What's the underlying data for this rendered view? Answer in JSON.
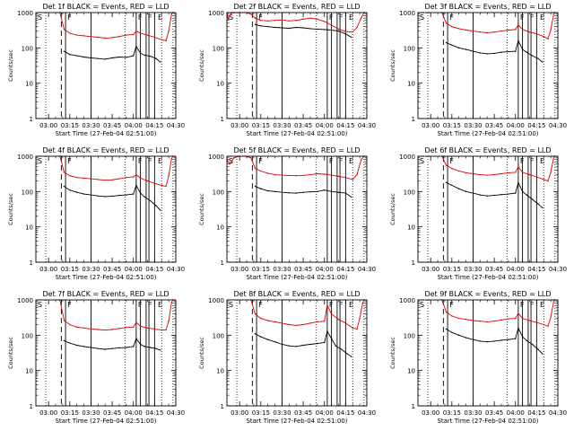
{
  "window": {
    "x_label": "Start Time (27-Feb-04 02:51:00)",
    "y_label": "Counts/sec",
    "x_ticks": [
      "03:00",
      "03:15",
      "03:30",
      "03:45",
      "04:00",
      "04:15",
      "04:30"
    ],
    "y_ticks": [
      "1",
      "10",
      "100",
      "1000"
    ]
  },
  "colors": {
    "events": "#000000",
    "lld": "#dd0000",
    "frame": "#000000"
  },
  "chart_data": [
    {
      "type": "line",
      "title": "Det 1f BLACK = Events, RED = LLD",
      "x_range_minutes": [
        171,
        270
      ],
      "y_range": [
        1,
        1000
      ],
      "y_scale": "log",
      "flags": [
        "S",
        "F",
        "F",
        "F",
        "E"
      ],
      "series": [
        {
          "name": "Events",
          "color": "#000000",
          "x": [
            191,
            195,
            200,
            205,
            210,
            215,
            220,
            225,
            230,
            235,
            240,
            242,
            245,
            248,
            252,
            256,
            259
          ],
          "y": [
            80,
            65,
            60,
            55,
            52,
            50,
            48,
            52,
            55,
            54,
            60,
            110,
            70,
            62,
            58,
            50,
            40
          ]
        },
        {
          "name": "LLD",
          "color": "#dd0000",
          "x": [
            188,
            191,
            195,
            200,
            205,
            210,
            215,
            220,
            225,
            230,
            235,
            240,
            242,
            245,
            250,
            255,
            260,
            263,
            265,
            267,
            268
          ],
          "y": [
            1000,
            330,
            260,
            230,
            220,
            210,
            200,
            190,
            195,
            210,
            230,
            240,
            300,
            260,
            230,
            200,
            170,
            160,
            300,
            900,
            1000
          ]
        }
      ]
    },
    {
      "type": "line",
      "title": "Det 2f BLACK = Events, RED = LLD",
      "x_range_minutes": [
        171,
        270
      ],
      "y_range": [
        1,
        1000
      ],
      "y_scale": "log",
      "flags": [
        "S",
        "F",
        "F",
        "F",
        "E"
      ],
      "series": [
        {
          "name": "Events",
          "color": "#000000",
          "x": [
            191,
            195,
            200,
            205,
            210,
            215,
            220,
            225,
            230,
            235,
            240,
            245,
            250,
            255,
            259
          ],
          "y": [
            460,
            420,
            400,
            380,
            370,
            360,
            380,
            370,
            350,
            340,
            330,
            320,
            300,
            250,
            200
          ]
        },
        {
          "name": "LLD",
          "color": "#dd0000",
          "x": [
            171,
            172,
            174,
            176,
            180,
            185,
            188,
            191,
            195,
            200,
            205,
            210,
            215,
            220,
            225,
            230,
            235,
            240,
            245,
            250,
            255,
            260,
            263,
            266,
            268
          ],
          "y": [
            1000,
            650,
            950,
            1000,
            1000,
            1000,
            900,
            700,
            600,
            580,
            600,
            620,
            580,
            600,
            650,
            700,
            650,
            560,
            440,
            340,
            290,
            280,
            380,
            700,
            1000
          ]
        }
      ]
    },
    {
      "type": "line",
      "title": "Det 3f BLACK = Events, RED = LLD",
      "x_range_minutes": [
        171,
        270
      ],
      "y_range": [
        1,
        1000
      ],
      "y_scale": "log",
      "flags": [
        "S",
        "F",
        "F",
        "F",
        "E"
      ],
      "series": [
        {
          "name": "Events",
          "color": "#000000",
          "x": [
            191,
            195,
            200,
            205,
            210,
            215,
            220,
            225,
            230,
            235,
            240,
            242,
            245,
            248,
            252,
            256,
            259
          ],
          "y": [
            140,
            120,
            100,
            90,
            80,
            72,
            68,
            70,
            75,
            78,
            80,
            160,
            90,
            75,
            60,
            50,
            40
          ]
        },
        {
          "name": "LLD",
          "color": "#dd0000",
          "x": [
            188,
            191,
            195,
            200,
            205,
            210,
            215,
            220,
            225,
            230,
            235,
            240,
            242,
            245,
            250,
            255,
            260,
            263,
            265,
            267,
            268
          ],
          "y": [
            1000,
            500,
            400,
            350,
            320,
            300,
            280,
            270,
            280,
            300,
            320,
            330,
            450,
            330,
            280,
            250,
            210,
            180,
            320,
            900,
            1000
          ]
        }
      ]
    },
    {
      "type": "line",
      "title": "Det 4f BLACK = Events, RED = LLD",
      "x_range_minutes": [
        171,
        270
      ],
      "y_range": [
        1,
        1000
      ],
      "y_scale": "log",
      "flags": [
        "S",
        "F",
        "F",
        "F",
        "E"
      ],
      "series": [
        {
          "name": "Events",
          "color": "#000000",
          "x": [
            191,
            195,
            200,
            205,
            210,
            215,
            220,
            225,
            230,
            235,
            240,
            242,
            245,
            248,
            252,
            256,
            259
          ],
          "y": [
            140,
            110,
            95,
            85,
            80,
            75,
            72,
            74,
            78,
            80,
            85,
            150,
            90,
            70,
            55,
            40,
            30
          ]
        },
        {
          "name": "LLD",
          "color": "#dd0000",
          "x": [
            188,
            191,
            195,
            200,
            205,
            210,
            215,
            220,
            225,
            230,
            235,
            240,
            242,
            245,
            250,
            255,
            260,
            263,
            265,
            267,
            268
          ],
          "y": [
            1000,
            350,
            280,
            250,
            240,
            230,
            220,
            210,
            215,
            230,
            250,
            260,
            300,
            240,
            200,
            170,
            150,
            140,
            280,
            850,
            1000
          ]
        }
      ]
    },
    {
      "type": "line",
      "title": "Det 5f BLACK = Events, RED = LLD",
      "x_range_minutes": [
        171,
        270
      ],
      "y_range": [
        1,
        1000
      ],
      "y_scale": "log",
      "flags": [
        "S",
        "F",
        "F",
        "F",
        "E"
      ],
      "series": [
        {
          "name": "Events",
          "color": "#000000",
          "x": [
            191,
            195,
            200,
            205,
            210,
            215,
            220,
            225,
            230,
            235,
            240,
            245,
            250,
            255,
            259
          ],
          "y": [
            140,
            120,
            105,
            100,
            95,
            92,
            90,
            95,
            98,
            100,
            110,
            100,
            95,
            90,
            70
          ]
        },
        {
          "name": "LLD",
          "color": "#dd0000",
          "x": [
            171,
            173,
            176,
            180,
            184,
            188,
            191,
            195,
            200,
            205,
            210,
            215,
            220,
            225,
            230,
            235,
            240,
            245,
            250,
            255,
            260,
            263,
            266,
            268
          ],
          "y": [
            800,
            600,
            900,
            1000,
            1000,
            900,
            450,
            380,
            330,
            300,
            290,
            285,
            280,
            285,
            300,
            320,
            310,
            290,
            270,
            250,
            220,
            300,
            800,
            1000
          ]
        }
      ]
    },
    {
      "type": "line",
      "title": "Det 6f BLACK = Events, RED = LLD",
      "x_range_minutes": [
        171,
        270
      ],
      "y_range": [
        1,
        1000
      ],
      "y_scale": "log",
      "flags": [
        "S",
        "F",
        "F",
        "F",
        "E"
      ],
      "series": [
        {
          "name": "Events",
          "color": "#000000",
          "x": [
            191,
            195,
            200,
            205,
            210,
            215,
            220,
            225,
            230,
            235,
            240,
            242,
            245,
            248,
            252,
            256,
            259
          ],
          "y": [
            180,
            150,
            120,
            100,
            90,
            80,
            75,
            78,
            82,
            85,
            90,
            180,
            100,
            80,
            60,
            45,
            35
          ]
        },
        {
          "name": "LLD",
          "color": "#dd0000",
          "x": [
            188,
            191,
            195,
            200,
            205,
            210,
            215,
            220,
            225,
            230,
            235,
            240,
            242,
            245,
            250,
            255,
            260,
            263,
            265,
            267,
            268
          ],
          "y": [
            1000,
            550,
            450,
            380,
            340,
            320,
            300,
            290,
            300,
            320,
            340,
            350,
            500,
            350,
            300,
            260,
            220,
            200,
            350,
            900,
            1000
          ]
        }
      ]
    },
    {
      "type": "line",
      "title": "Det 7f BLACK = Events, RED = LLD",
      "x_range_minutes": [
        171,
        270
      ],
      "y_range": [
        1,
        1000
      ],
      "y_scale": "log",
      "flags": [
        "S",
        "F",
        "F",
        "F",
        "E"
      ],
      "series": [
        {
          "name": "Events",
          "color": "#000000",
          "x": [
            191,
            195,
            200,
            205,
            210,
            215,
            220,
            225,
            230,
            235,
            240,
            242,
            245,
            248,
            252,
            256,
            259
          ],
          "y": [
            70,
            60,
            52,
            48,
            45,
            42,
            40,
            42,
            44,
            45,
            48,
            80,
            55,
            48,
            45,
            42,
            38
          ]
        },
        {
          "name": "LLD",
          "color": "#dd0000",
          "x": [
            188,
            191,
            195,
            200,
            205,
            210,
            215,
            220,
            225,
            230,
            235,
            240,
            242,
            245,
            250,
            255,
            260,
            263,
            265,
            267,
            268
          ],
          "y": [
            1000,
            260,
            200,
            170,
            160,
            150,
            145,
            140,
            145,
            155,
            165,
            170,
            230,
            180,
            160,
            150,
            140,
            140,
            250,
            850,
            1000
          ]
        }
      ]
    },
    {
      "type": "line",
      "title": "Det 8f BLACK = Events, RED = LLD",
      "x_range_minutes": [
        171,
        270
      ],
      "y_range": [
        1,
        1000
      ],
      "y_scale": "log",
      "flags": [
        "S",
        "F",
        "F",
        "F",
        "E"
      ],
      "series": [
        {
          "name": "Events",
          "color": "#000000",
          "x": [
            191,
            195,
            200,
            205,
            210,
            215,
            220,
            225,
            230,
            235,
            240,
            242,
            245,
            248,
            252,
            256,
            259
          ],
          "y": [
            110,
            90,
            75,
            65,
            55,
            50,
            48,
            52,
            55,
            58,
            62,
            130,
            80,
            50,
            40,
            30,
            25
          ]
        },
        {
          "name": "LLD",
          "color": "#dd0000",
          "x": [
            188,
            191,
            195,
            200,
            205,
            210,
            215,
            220,
            225,
            230,
            235,
            240,
            242,
            245,
            250,
            255,
            260,
            263,
            265,
            267,
            268
          ],
          "y": [
            1000,
            400,
            300,
            260,
            240,
            220,
            200,
            190,
            200,
            220,
            240,
            250,
            700,
            400,
            280,
            220,
            160,
            150,
            300,
            800,
            1000
          ]
        }
      ]
    },
    {
      "type": "line",
      "title": "Det 9f BLACK = Events, RED = LLD",
      "x_range_minutes": [
        171,
        270
      ],
      "y_range": [
        1,
        1000
      ],
      "y_scale": "log",
      "flags": [
        "S",
        "F",
        "F",
        "F",
        "E"
      ],
      "series": [
        {
          "name": "Events",
          "color": "#000000",
          "x": [
            191,
            195,
            200,
            205,
            210,
            215,
            220,
            225,
            230,
            235,
            240,
            242,
            245,
            248,
            252,
            256,
            259
          ],
          "y": [
            150,
            120,
            100,
            85,
            75,
            68,
            65,
            68,
            72,
            75,
            80,
            160,
            90,
            70,
            55,
            40,
            30
          ]
        },
        {
          "name": "LLD",
          "color": "#dd0000",
          "x": [
            188,
            191,
            195,
            200,
            205,
            210,
            215,
            220,
            225,
            230,
            235,
            240,
            242,
            245,
            250,
            255,
            260,
            263,
            265,
            267,
            268
          ],
          "y": [
            1000,
            450,
            350,
            300,
            280,
            260,
            250,
            240,
            250,
            270,
            290,
            300,
            420,
            300,
            260,
            230,
            200,
            180,
            320,
            900,
            1000
          ]
        }
      ]
    }
  ]
}
